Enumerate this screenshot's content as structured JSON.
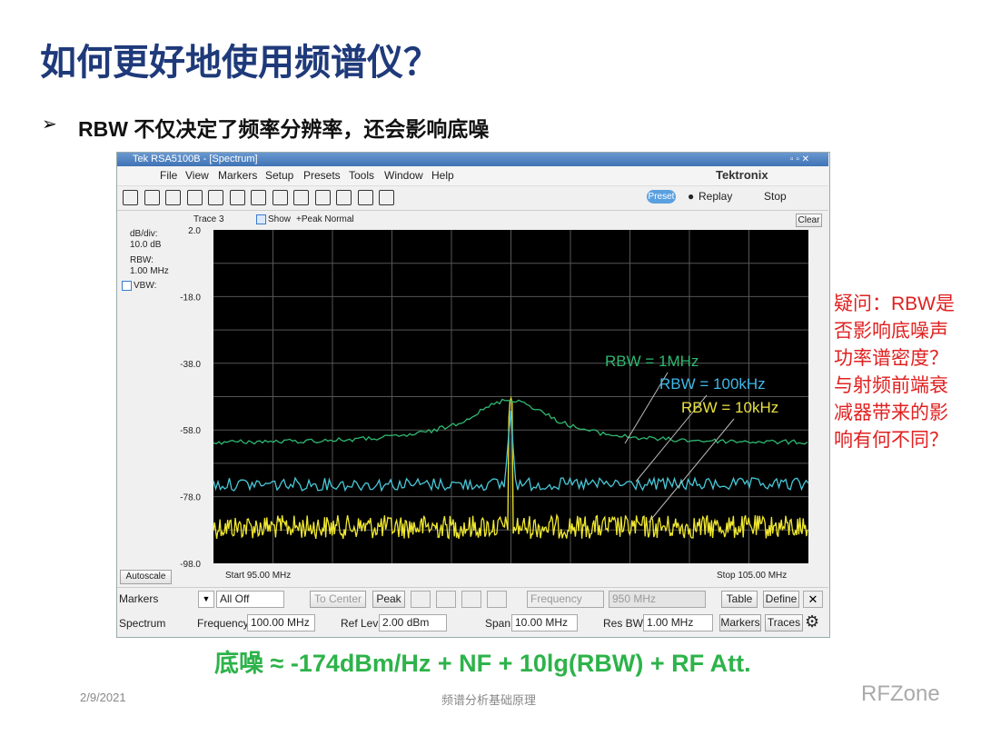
{
  "title": "如何更好地使用频谱仪？",
  "bullet": "RBW 不仅决定了频率分辨率，还会影响底噪",
  "window": {
    "title": "Tek RSA5100B - [Spectrum]",
    "menu": [
      "File",
      "View",
      "Markers",
      "Setup",
      "Presets",
      "Tools",
      "Window",
      "Help"
    ],
    "brand": "Tektronix",
    "preset": "Preset",
    "replay": "Replay",
    "stop": "Stop"
  },
  "trace_bar": {
    "trace": "Trace 3",
    "show": "Show",
    "detector": "+Peak Normal",
    "clear": "Clear"
  },
  "settings": [
    "dB/div:",
    "10.0 dB",
    "RBW:",
    "1.00 MHz",
    "VBW:"
  ],
  "spectrum": {
    "yticks": [
      {
        "value": 2,
        "label": "2.0"
      },
      {
        "value": -18,
        "label": "-18.0"
      },
      {
        "value": -38,
        "label": "-38.0"
      },
      {
        "value": -58,
        "label": "-58.0"
      },
      {
        "value": -78,
        "label": "-78.0"
      },
      {
        "value": -98,
        "label": "-98.0"
      }
    ],
    "start": "Start  95.00 MHz",
    "stop": "Stop  105.00 MHz",
    "annotations": [
      {
        "text": "RBW = 1MHz",
        "color": "#2fb870"
      },
      {
        "text": "RBW = 100kHz",
        "color": "#3fb8e8"
      },
      {
        "text": "RBW = 10kHz",
        "color": "#e8e040"
      }
    ]
  },
  "autoscale": "Autoscale",
  "markers_row": [
    "Markers",
    "All Off",
    "To Center",
    "Peak",
    "Frequency",
    "950 MHz",
    "Table",
    "Define"
  ],
  "spectrum_row": [
    "Spectrum",
    "Frequency",
    "100.00 MHz",
    "Ref Lev",
    "2.00 dBm",
    "Span",
    "10.00 MHz",
    "Res BW",
    "1.00 MHz",
    "Markers",
    "Traces"
  ],
  "note": [
    "疑问：RBW是",
    "否影响底噪声",
    "功率谱密度？",
    "与射频前端衰",
    "减器带来的影",
    "响有何不同？"
  ],
  "formula": "底噪 ≈ -174dBm/Hz + NF + 10lg(RBW) + RF Att.",
  "footer": {
    "date": "2/9/2021",
    "center": "频谱分析基础原理",
    "logo": "RFZone"
  }
}
